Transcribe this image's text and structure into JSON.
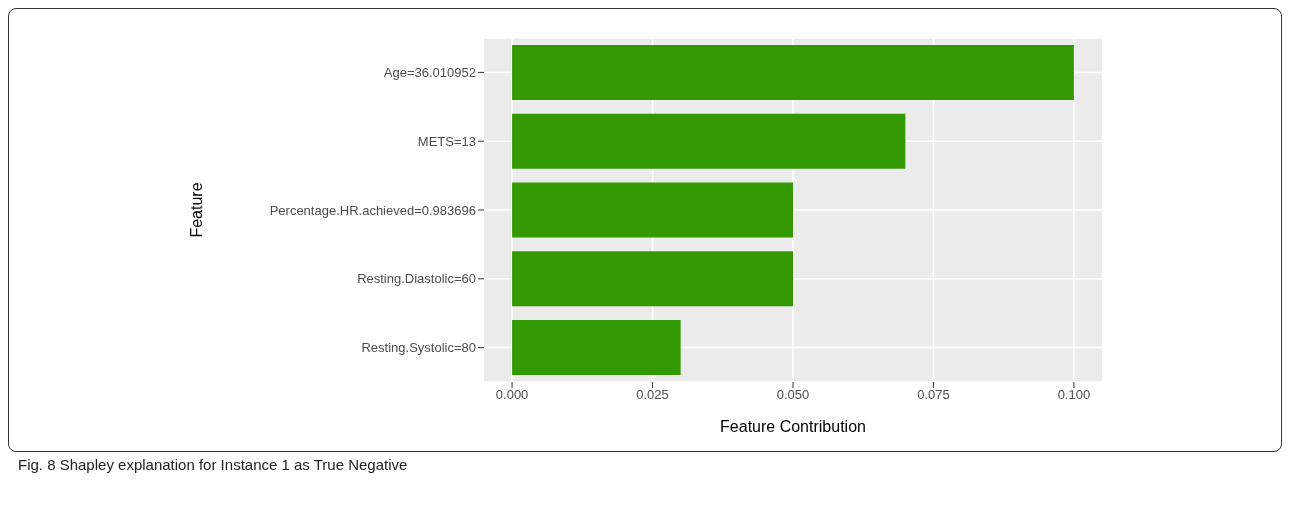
{
  "chart_data": {
    "type": "bar",
    "orientation": "horizontal",
    "xlabel": "Feature Contribution",
    "ylabel": "Feature",
    "categories": [
      "Age=36.010952",
      "METS=13",
      "Percentage.HR.achieved=0.983696",
      "Resting.Diastolic=60",
      "Resting.Systolic=80"
    ],
    "values": [
      0.1,
      0.07,
      0.05,
      0.05,
      0.03
    ],
    "color": "#339900",
    "xlim": [
      -0.005,
      0.105
    ],
    "xticks": [
      {
        "value": 0,
        "label": "0.000"
      },
      {
        "value": 0.025,
        "label": "0.025"
      },
      {
        "value": 0.05,
        "label": "0.050"
      },
      {
        "value": 0.075,
        "label": "0.075"
      },
      {
        "value": 0.1,
        "label": "0.100"
      }
    ],
    "grid": true,
    "annotations": [
      "Fig. 8 Shapley explanation for Instance 1 as True Negative"
    ]
  }
}
